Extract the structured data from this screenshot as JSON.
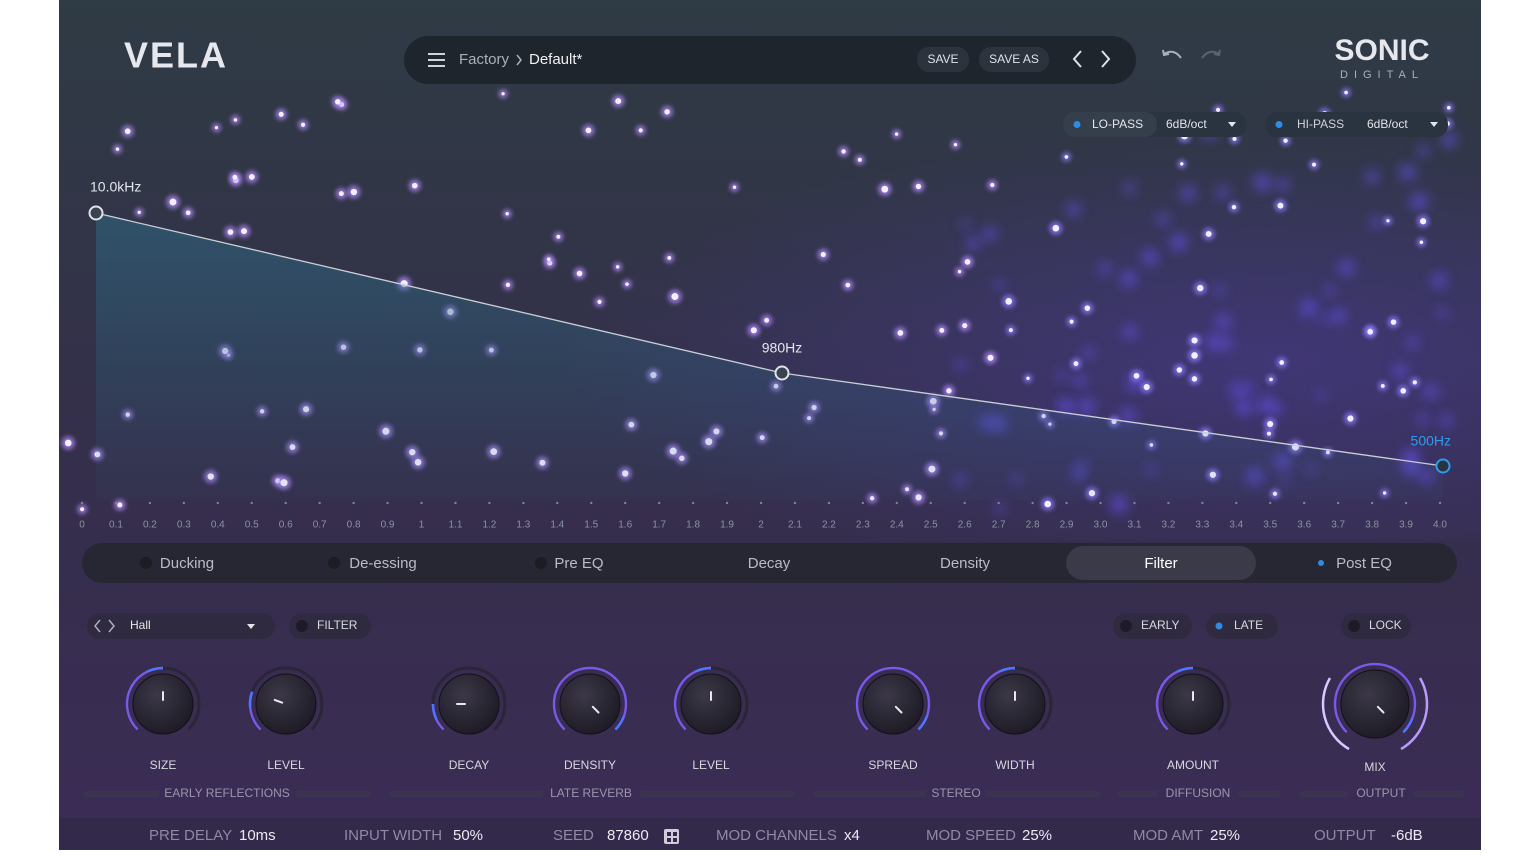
{
  "header": {
    "logo": "VELA",
    "preset_bank": "Factory",
    "preset_name": "Default*",
    "save": "SAVE",
    "save_as": "SAVE AS",
    "brand": "SONIC",
    "brand_sub": "DIGITAL"
  },
  "filters": [
    {
      "label": "LO-PASS",
      "slope": "6dB/oct"
    },
    {
      "label": "HI-PASS",
      "slope": "6dB/oct"
    }
  ],
  "curve_points": [
    "10.0kHz",
    "980Hz",
    "500Hz"
  ],
  "time_axis": [
    "0",
    "0.1",
    "0.2",
    "0.3",
    "0.4",
    "0.5",
    "0.6",
    "0.7",
    "0.8",
    "0.9",
    "1",
    "1.1",
    "1.2",
    "1.3",
    "1.4",
    "1.5",
    "1.6",
    "1.7",
    "1.8",
    "1.9",
    "2",
    "2.1",
    "2.2",
    "2.3",
    "2.4",
    "2.5",
    "2.6",
    "2.7",
    "2.8",
    "2.9",
    "3.0",
    "3.1",
    "3.2",
    "3.3",
    "3.4",
    "3.5",
    "3.6",
    "3.7",
    "3.8",
    "3.9",
    "4.0"
  ],
  "tabs": [
    "Ducking",
    "De-essing",
    "Pre EQ",
    "Decay",
    "Density",
    "Filter",
    "Post EQ"
  ],
  "controls": {
    "preset": "Hall",
    "filter": "FILTER",
    "early": "EARLY",
    "late": "LATE",
    "lock": "LOCK"
  },
  "knobs": [
    "SIZE",
    "LEVEL",
    "DECAY",
    "DENSITY",
    "LEVEL",
    "SPREAD",
    "WIDTH",
    "AMOUNT",
    "MIX"
  ],
  "sections": [
    "EARLY REFLECTIONS",
    "LATE REVERB",
    "STEREO",
    "DIFFUSION",
    "OUTPUT"
  ],
  "status": [
    {
      "label": "PRE DELAY",
      "value": "10ms"
    },
    {
      "label": "INPUT WIDTH",
      "value": "50%"
    },
    {
      "label": "SEED",
      "value": "87860"
    },
    {
      "label": "MOD CHANNELS",
      "value": "x4"
    },
    {
      "label": "MOD SPEED",
      "value": "25%"
    },
    {
      "label": "MOD AMT",
      "value": "25%"
    },
    {
      "label": "OUTPUT",
      "value": "-6dB"
    }
  ]
}
